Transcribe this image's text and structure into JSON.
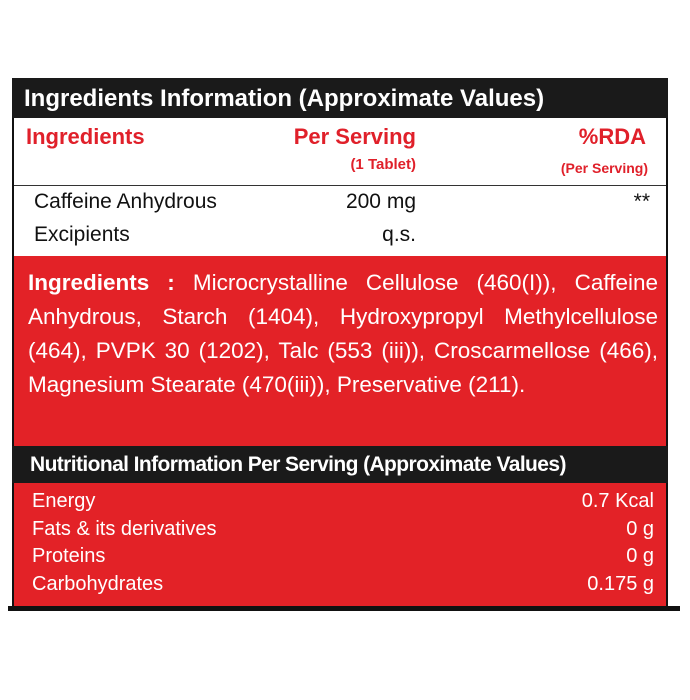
{
  "header": {
    "title": "Ingredients Information (Approximate Values)"
  },
  "table": {
    "columns": [
      "Ingredients",
      "Per Serving",
      "%RDA"
    ],
    "column_notes": [
      "(1 Tablet)",
      "(Per Serving)"
    ],
    "rows": [
      [
        "Caffeine Anhydrous",
        "200 mg",
        "**"
      ],
      [
        "Excipients",
        "q.s.",
        ""
      ]
    ]
  },
  "ingredients_list": {
    "label": "Ingredients :",
    "text": "Microcrystalline Cellulose (460(I)), Caffeine Anhydrous, Starch (1404), Hydroxypropyl Methylcellulose (464), PVPK 30 (1202), Talc (553 (iii)), Croscarmellose (466), Magnesium Stearate (470(iii)), Preservative (211)."
  },
  "nutrition": {
    "title": "Nutritional Information Per Serving (Approximate Values)",
    "rows": [
      [
        "Energy",
        "0.7 Kcal"
      ],
      [
        "Fats & its derivatives",
        "0 g"
      ],
      [
        "Proteins",
        "0 g"
      ],
      [
        "Carbohydrates",
        "0.175 g"
      ]
    ]
  }
}
